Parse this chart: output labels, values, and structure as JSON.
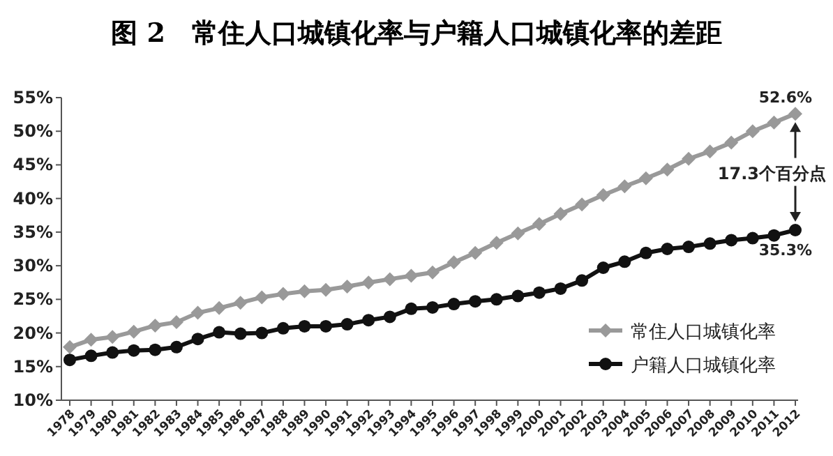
{
  "chart_data": {
    "type": "line",
    "title": "图 2　常住人口城镇化率与户籍人口城镇化率的差距",
    "categories": [
      "1978",
      "1979",
      "1980",
      "1981",
      "1982",
      "1983",
      "1984",
      "1985",
      "1986",
      "1987",
      "1988",
      "1989",
      "1990",
      "1991",
      "1992",
      "1993",
      "1994",
      "1995",
      "1996",
      "1997",
      "1998",
      "1999",
      "2000",
      "2001",
      "2002",
      "2003",
      "2004",
      "2005",
      "2006",
      "2007",
      "2008",
      "2009",
      "2010",
      "2011",
      "2012"
    ],
    "series": [
      {
        "name": "常住人口城镇化率",
        "color": "#999999",
        "marker": "diamond",
        "values": [
          17.9,
          19.0,
          19.4,
          20.2,
          21.1,
          21.6,
          23.0,
          23.7,
          24.5,
          25.3,
          25.8,
          26.2,
          26.4,
          26.9,
          27.5,
          28.0,
          28.5,
          29.0,
          30.5,
          31.9,
          33.4,
          34.8,
          36.2,
          37.7,
          39.1,
          40.5,
          41.8,
          43.0,
          44.3,
          45.9,
          47.0,
          48.3,
          50.0,
          51.3,
          52.6
        ]
      },
      {
        "name": "户籍人口城镇化率",
        "color": "#111111",
        "marker": "circle",
        "values": [
          16.0,
          16.6,
          17.1,
          17.4,
          17.5,
          17.9,
          19.1,
          20.1,
          19.9,
          20.0,
          20.7,
          21.0,
          21.0,
          21.3,
          21.9,
          22.4,
          23.6,
          23.8,
          24.3,
          24.7,
          25.0,
          25.5,
          26.0,
          26.6,
          27.8,
          29.7,
          30.6,
          31.9,
          32.5,
          32.8,
          33.3,
          33.8,
          34.1,
          34.5,
          35.3
        ]
      }
    ],
    "ylim": [
      10,
      55
    ],
    "yticks": [
      {
        "value": 10,
        "label": "10%"
      },
      {
        "value": 15,
        "label": "15%"
      },
      {
        "value": 20,
        "label": "20%"
      },
      {
        "value": 25,
        "label": "25%"
      },
      {
        "value": 30,
        "label": "30%"
      },
      {
        "value": 35,
        "label": "35%"
      },
      {
        "value": 40,
        "label": "40%"
      },
      {
        "value": 45,
        "label": "45%"
      },
      {
        "value": 50,
        "label": "50%"
      },
      {
        "value": 55,
        "label": "55%"
      }
    ],
    "grid": false,
    "legend": "bottom right",
    "line_style": "solid",
    "annotations": [
      {
        "text": "52.6%",
        "x": "2012",
        "y": 52.6
      },
      {
        "text": "35.3%",
        "x": "2012",
        "y": 35.3
      },
      "17.3个百分点"
    ]
  }
}
